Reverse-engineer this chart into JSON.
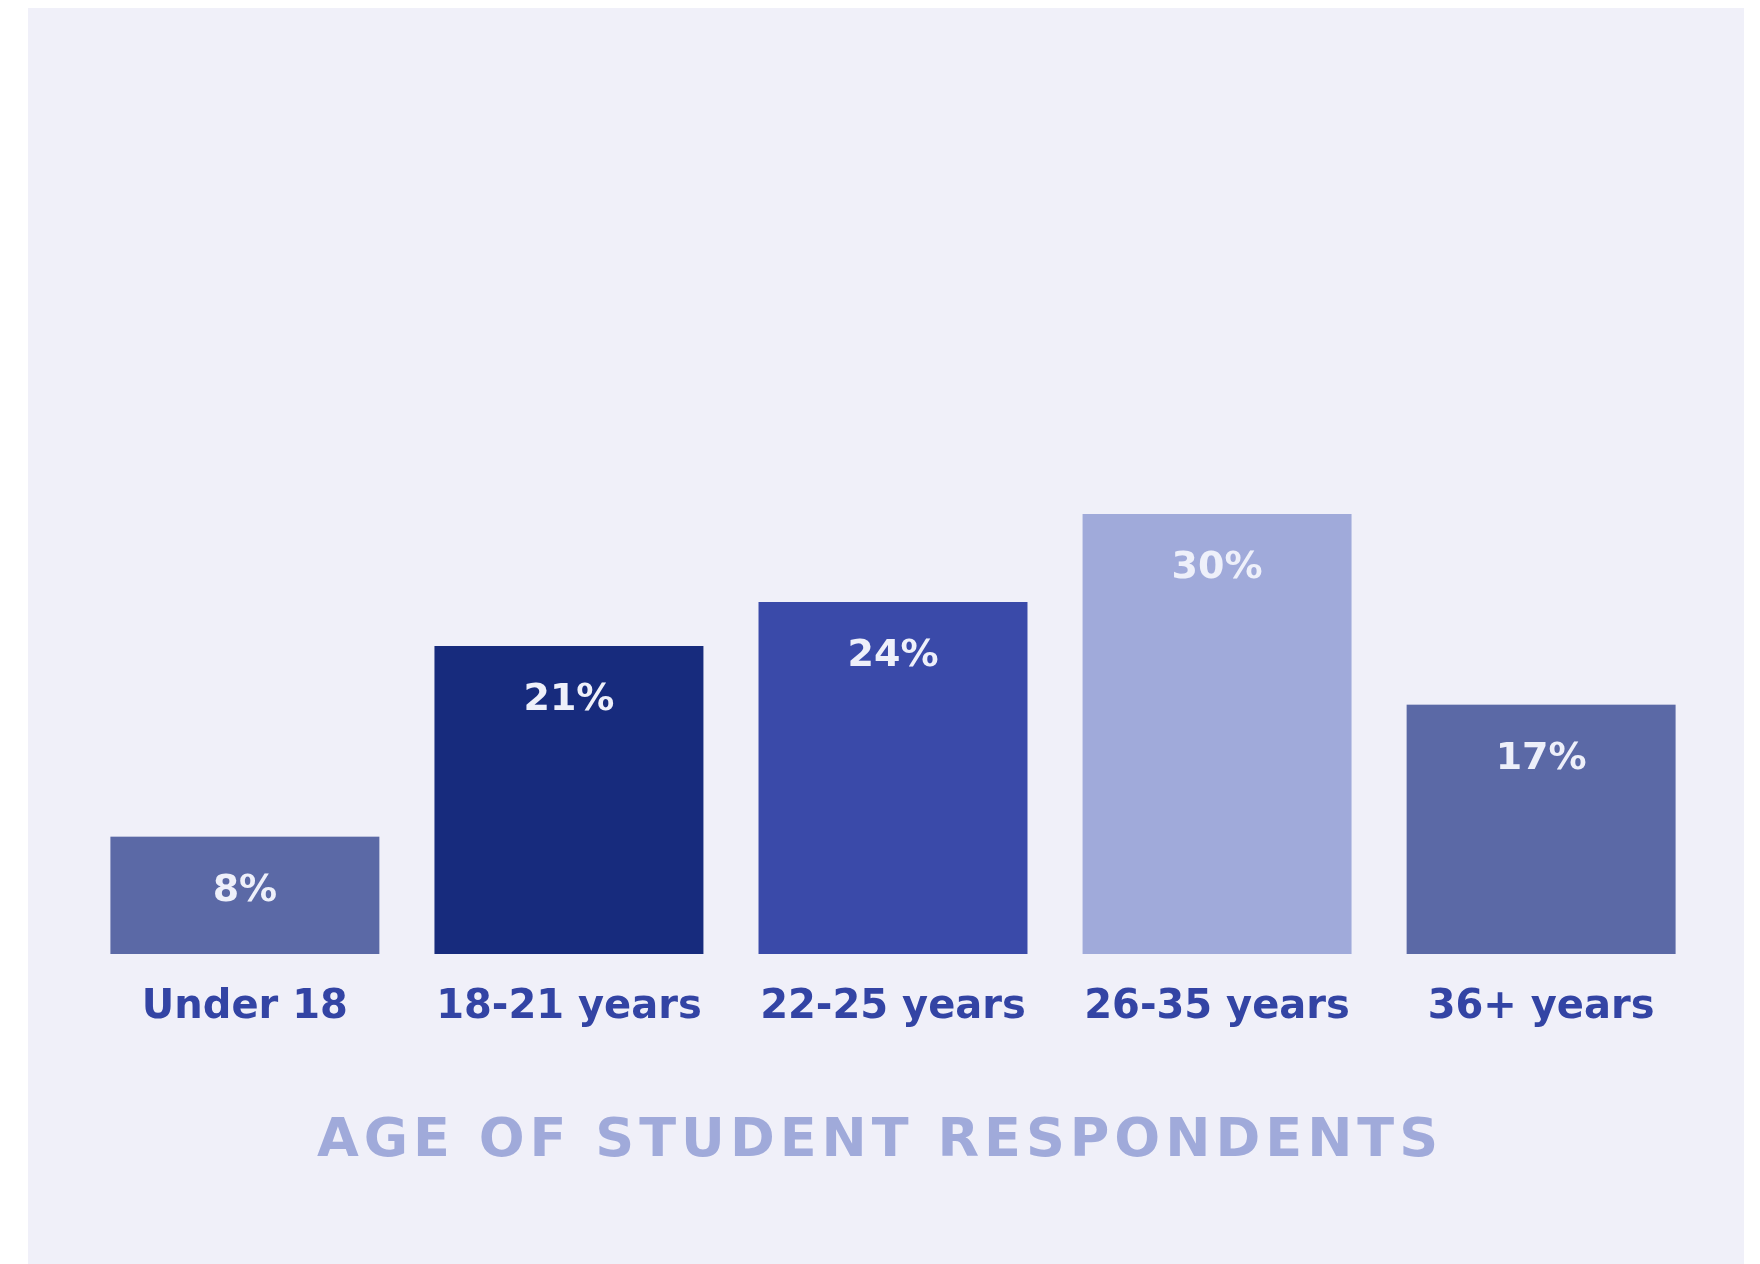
{
  "chart_data": {
    "type": "bar",
    "title": "AGE OF STUDENT RESPONDENTS",
    "categories": [
      "Under 18",
      "18-21 years",
      "22-25 years",
      "26-35 years",
      "36+ years"
    ],
    "values": [
      8,
      21,
      24,
      30,
      17
    ],
    "colors": [
      "#5b69a6",
      "#172b7d",
      "#3a4aa9",
      "#a0aada",
      "#5b69a6"
    ],
    "value_labels": [
      "8%",
      "21%",
      "24%",
      "30%",
      "17%"
    ]
  }
}
